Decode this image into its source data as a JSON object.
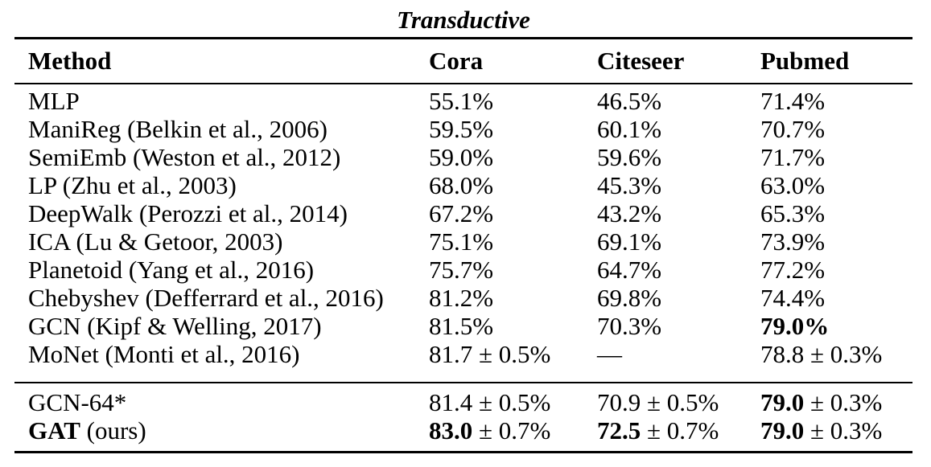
{
  "title": "Transductive",
  "header": {
    "method": "Method",
    "cora": "Cora",
    "citeseer": "Citeseer",
    "pubmed": "Pubmed"
  },
  "rows": [
    {
      "method": {
        "name": "MLP",
        "suffix": ""
      },
      "cora": {
        "main": "55.1%",
        "rest": ""
      },
      "citeseer": {
        "main": "46.5%",
        "rest": ""
      },
      "pubmed": {
        "main": "71.4%",
        "rest": ""
      }
    },
    {
      "method": {
        "name": "ManiReg",
        "suffix": " (Belkin et al., 2006)"
      },
      "cora": {
        "main": "59.5%",
        "rest": ""
      },
      "citeseer": {
        "main": "60.1%",
        "rest": ""
      },
      "pubmed": {
        "main": "70.7%",
        "rest": ""
      }
    },
    {
      "method": {
        "name": "SemiEmb",
        "suffix": " (Weston et al., 2012)"
      },
      "cora": {
        "main": "59.0%",
        "rest": ""
      },
      "citeseer": {
        "main": "59.6%",
        "rest": ""
      },
      "pubmed": {
        "main": "71.7%",
        "rest": ""
      }
    },
    {
      "method": {
        "name": "LP",
        "suffix": " (Zhu et al., 2003)"
      },
      "cora": {
        "main": "68.0%",
        "rest": ""
      },
      "citeseer": {
        "main": "45.3%",
        "rest": ""
      },
      "pubmed": {
        "main": "63.0%",
        "rest": ""
      }
    },
    {
      "method": {
        "name": "DeepWalk",
        "suffix": " (Perozzi et al., 2014)"
      },
      "cora": {
        "main": "67.2%",
        "rest": ""
      },
      "citeseer": {
        "main": "43.2%",
        "rest": ""
      },
      "pubmed": {
        "main": "65.3%",
        "rest": ""
      }
    },
    {
      "method": {
        "name": "ICA",
        "suffix": " (Lu & Getoor, 2003)"
      },
      "cora": {
        "main": "75.1%",
        "rest": ""
      },
      "citeseer": {
        "main": "69.1%",
        "rest": ""
      },
      "pubmed": {
        "main": "73.9%",
        "rest": ""
      }
    },
    {
      "method": {
        "name": "Planetoid",
        "suffix": " (Yang et al., 2016)"
      },
      "cora": {
        "main": "75.7%",
        "rest": ""
      },
      "citeseer": {
        "main": "64.7%",
        "rest": ""
      },
      "pubmed": {
        "main": "77.2%",
        "rest": ""
      }
    },
    {
      "method": {
        "name": "Chebyshev",
        "suffix": " (Defferrard et al., 2016)"
      },
      "cora": {
        "main": "81.2%",
        "rest": ""
      },
      "citeseer": {
        "main": "69.8%",
        "rest": ""
      },
      "pubmed": {
        "main": "74.4%",
        "rest": ""
      }
    },
    {
      "method": {
        "name": "GCN",
        "suffix": " (Kipf & Welling, 2017)"
      },
      "cora": {
        "main": "81.5%",
        "rest": ""
      },
      "citeseer": {
        "main": "70.3%",
        "rest": ""
      },
      "pubmed": {
        "main": "79.0%",
        "rest": ""
      }
    },
    {
      "method": {
        "name": "MoNet",
        "suffix": " (Monti et al., 2016)"
      },
      "cora": {
        "main": "81.7",
        "rest": " ± 0.5%"
      },
      "citeseer": {
        "main": "—",
        "rest": ""
      },
      "pubmed": {
        "main": "78.8",
        "rest": " ± 0.3%"
      }
    }
  ],
  "footer_rows": [
    {
      "method": {
        "name": "GCN-64*",
        "suffix": ""
      },
      "cora": {
        "main": "81.4",
        "rest": " ± 0.5%"
      },
      "citeseer": {
        "main": "70.9",
        "rest": " ± 0.5%"
      },
      "pubmed": {
        "main": "79.0",
        "rest": " ± 0.3%"
      }
    },
    {
      "method": {
        "name": "GAT",
        "suffix": " (ours)"
      },
      "cora": {
        "main": "83.0",
        "rest": " ± 0.7%"
      },
      "citeseer": {
        "main": "72.5",
        "rest": " ± 0.7%"
      },
      "pubmed": {
        "main": "79.0",
        "rest": " ± 0.3%"
      }
    }
  ]
}
